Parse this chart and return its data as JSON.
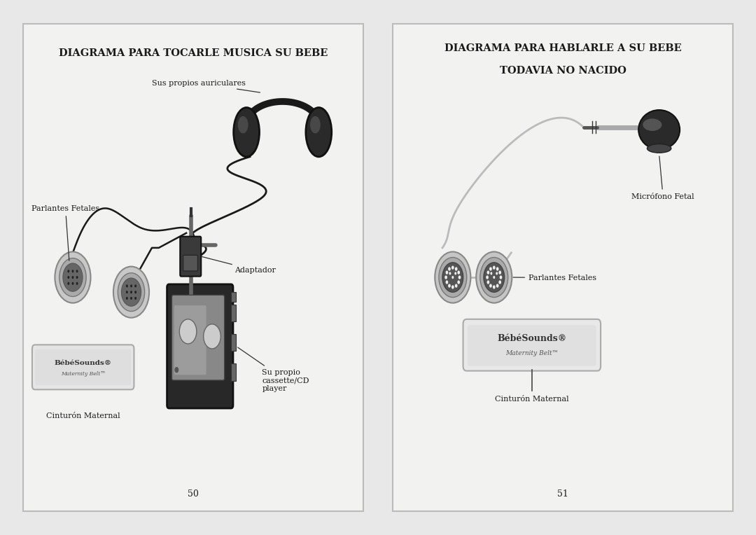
{
  "page_bg": "#e8e8e8",
  "panel_bg": "#f2f2f0",
  "panel_border": "#bbbbbb",
  "title1": "DIAGRAMA PARA TOCARLE MUSICA SU BEBE",
  "title2_line1": "DIAGRAMA PARA HABLARLE A SU BEBE",
  "title2_line2": "TODAVIA NO NACIDO",
  "page1_labels": {
    "auriculares": "Sus propios auriculares",
    "parlantes": "Parlantes Fetales",
    "adaptador": "Adaptador",
    "cinturon": "Cinturón Maternal",
    "cassette": "Su propio\ncassette/CD\nplayer"
  },
  "page2_labels": {
    "microfono": "Micrófono Fetal",
    "parlantes": "Parlantes Fetales",
    "cinturon": "Cinturón Maternal"
  },
  "page_num1": "50",
  "page_num2": "51",
  "text_color": "#1a1a1a",
  "title_fontsize": 10.5,
  "label_fontsize": 8.0,
  "brand_text": "BébéSounds®",
  "brand_sub": "Maternity Belt™"
}
